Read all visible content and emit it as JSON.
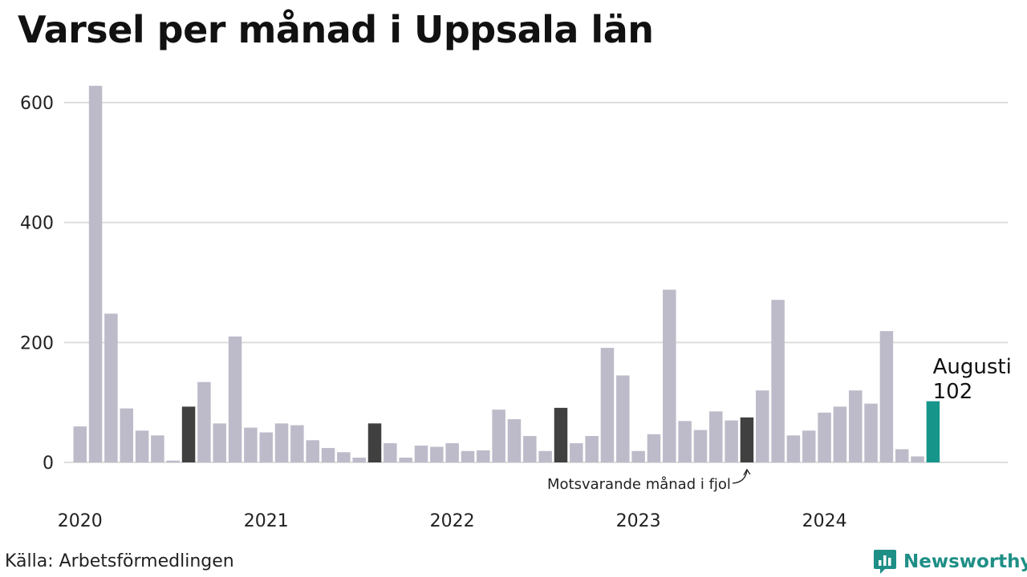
{
  "title": "Varsel per månad i Uppsala län",
  "source": "Källa: Arbetsförmedlingen",
  "brand": {
    "name": "Newsworthy",
    "icon": "newsworthy-logo-icon",
    "color": "#1e8f86"
  },
  "chart_data": {
    "type": "bar",
    "title": "Varsel per månad i Uppsala län",
    "xlabel": "",
    "ylabel": "",
    "ylim": [
      0,
      640
    ],
    "y_ticks": [
      "0",
      "200",
      "400",
      "600"
    ],
    "x_tick_labels": [
      "2020",
      "2021",
      "2022",
      "2023",
      "2024"
    ],
    "grid": true,
    "colors": {
      "default": "#bdbbc9",
      "same_month_previous_years": "#404040",
      "latest": "#16968a"
    },
    "categories": [
      "2020-01",
      "2020-02",
      "2020-03",
      "2020-04",
      "2020-05",
      "2020-06",
      "2020-07",
      "2020-08",
      "2020-09",
      "2020-10",
      "2020-11",
      "2020-12",
      "2021-01",
      "2021-02",
      "2021-03",
      "2021-04",
      "2021-05",
      "2021-06",
      "2021-07",
      "2021-08",
      "2021-09",
      "2021-10",
      "2021-11",
      "2021-12",
      "2022-01",
      "2022-02",
      "2022-03",
      "2022-04",
      "2022-05",
      "2022-06",
      "2022-07",
      "2022-08",
      "2022-09",
      "2022-10",
      "2022-11",
      "2022-12",
      "2023-01",
      "2023-02",
      "2023-03",
      "2023-04",
      "2023-05",
      "2023-06",
      "2023-07",
      "2023-08",
      "2023-09",
      "2023-10",
      "2023-11",
      "2023-12",
      "2024-01",
      "2024-02",
      "2024-03",
      "2024-04",
      "2024-05",
      "2024-06",
      "2024-07",
      "2024-08"
    ],
    "values": [
      60,
      628,
      248,
      90,
      53,
      45,
      3,
      93,
      134,
      65,
      210,
      58,
      50,
      65,
      62,
      37,
      24,
      17,
      8,
      65,
      32,
      8,
      28,
      26,
      32,
      19,
      20,
      88,
      72,
      44,
      19,
      91,
      32,
      44,
      191,
      145,
      19,
      47,
      288,
      69,
      54,
      85,
      70,
      75,
      120,
      271,
      45,
      53,
      83,
      93,
      120,
      98,
      219,
      22,
      10,
      102
    ],
    "highlight_dark": [
      "2020-08",
      "2021-08",
      "2022-08",
      "2023-08"
    ],
    "highlight_latest": "2024-08",
    "annotations": {
      "previous_year": "Motsvarande månad i fjol",
      "latest_month": "Augusti",
      "latest_value": "102"
    }
  }
}
